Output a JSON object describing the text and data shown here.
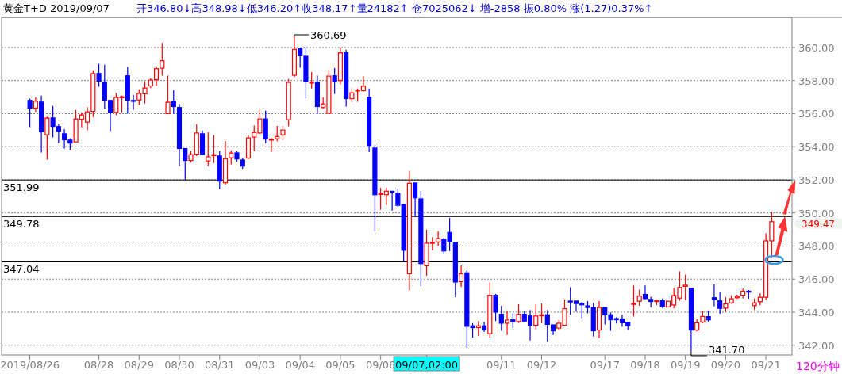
{
  "chart_data": {
    "type": "candlestick",
    "title": "黄金T+D 2019/09/07",
    "subtitle": "开346.80↓高348.98↓低346.20↑收348.17↑量24182↑ 仓7025062↓ 增-2858 振0.80% 涨(1.27)0.37%↑",
    "categories": [
      "2019/08/26",
      null,
      null,
      null,
      null,
      null,
      null,
      null,
      null,
      null,
      null,
      null,
      "08/28",
      null,
      null,
      null,
      null,
      null,
      null,
      "08/29",
      null,
      null,
      null,
      null,
      null,
      null,
      "08/30",
      null,
      null,
      null,
      null,
      null,
      null,
      "08/31",
      null,
      null,
      null,
      null,
      null,
      null,
      "09/03",
      null,
      null,
      null,
      null,
      null,
      null,
      "09/04",
      null,
      null,
      null,
      null,
      null,
      null,
      "09/05",
      null,
      null,
      null,
      null,
      null,
      null,
      "09/06",
      null,
      null,
      null,
      null,
      null,
      null,
      null,
      "09/07,02:00",
      null,
      null,
      null,
      null,
      null,
      null,
      null,
      null,
      null,
      null,
      null,
      null,
      "09/11",
      null,
      null,
      null,
      null,
      null,
      null,
      "09/12",
      null,
      null,
      null,
      null,
      null,
      null,
      null,
      null,
      null,
      null,
      "09/17",
      null,
      null,
      null,
      null,
      null,
      null,
      "09/18",
      null,
      null,
      null,
      null,
      null,
      null,
      "09/19",
      null,
      null,
      null,
      null,
      null,
      null,
      "09/20",
      null,
      null,
      null,
      null,
      null,
      null,
      "09/21",
      null
    ],
    "ohlc": [
      [
        356.8,
        356.91,
        355.18,
        356.34
      ],
      [
        356.34,
        356.99,
        356.11,
        356.75
      ],
      [
        356.7,
        357.09,
        353.65,
        354.9
      ],
      [
        354.72,
        355.82,
        353.22,
        355.73
      ],
      [
        355.74,
        356.46,
        354.56,
        355.23
      ],
      [
        355.22,
        355.36,
        354.22,
        354.94
      ],
      [
        354.78,
        355.07,
        353.89,
        354.42
      ],
      [
        354.4,
        354.5,
        353.82,
        354.22
      ],
      [
        354.29,
        356.22,
        354.29,
        355.68
      ],
      [
        355.66,
        356.08,
        355.17,
        355.92
      ],
      [
        355.49,
        356.4,
        354.99,
        356.11
      ],
      [
        356.14,
        358.62,
        355.79,
        358.42
      ],
      [
        358.43,
        359.01,
        357.63,
        357.97
      ],
      [
        357.9,
        358.96,
        356.29,
        356.82
      ],
      [
        356.8,
        356.8,
        354.94,
        356.06
      ],
      [
        356.08,
        357.26,
        355.92,
        356.98
      ],
      [
        356.98,
        357.09,
        356.08,
        357.02
      ],
      [
        358.29,
        358.82,
        356.0,
        356.82
      ],
      [
        356.8,
        357.14,
        356.24,
        356.77
      ],
      [
        356.83,
        357.47,
        356.53,
        357.22
      ],
      [
        357.2,
        357.95,
        356.61,
        357.55
      ],
      [
        357.68,
        358.13,
        357.54,
        358.03
      ],
      [
        358.06,
        358.86,
        357.68,
        358.72
      ],
      [
        358.75,
        360.27,
        358.3,
        359.2
      ],
      [
        356.0,
        358.3,
        356.0,
        356.69
      ],
      [
        356.75,
        357.42,
        356.0,
        356.43
      ],
      [
        356.37,
        356.59,
        352.83,
        353.89
      ],
      [
        353.89,
        353.89,
        352.0,
        353.17
      ],
      [
        353.17,
        353.73,
        353.04,
        353.52
      ],
      [
        353.55,
        355.36,
        353.44,
        354.83
      ],
      [
        354.78,
        354.98,
        353.49,
        353.54
      ],
      [
        353.14,
        354.88,
        352.83,
        353.39
      ],
      [
        353.47,
        354.7,
        353.02,
        353.52
      ],
      [
        353.44,
        353.73,
        351.44,
        351.92
      ],
      [
        351.82,
        354.35,
        351.71,
        353.28
      ],
      [
        353.33,
        353.78,
        352.93,
        353.62
      ],
      [
        353.63,
        353.73,
        353.1,
        353.26
      ],
      [
        353.2,
        353.3,
        352.67,
        352.83
      ],
      [
        353.31,
        354.69,
        353.26,
        354.53
      ],
      [
        354.58,
        355.28,
        353.74,
        354.86
      ],
      [
        354.83,
        356.27,
        354.77,
        355.68
      ],
      [
        355.68,
        356.18,
        354.22,
        354.46
      ],
      [
        354.42,
        354.53,
        353.68,
        354.46
      ],
      [
        354.48,
        355.26,
        354.32,
        354.62
      ],
      [
        354.72,
        355.23,
        354.42,
        355.01
      ],
      [
        355.63,
        358.1,
        355.23,
        357.89
      ],
      [
        358.32,
        360.69,
        358.22,
        359.89
      ],
      [
        359.92,
        360.0,
        358.78,
        359.5
      ],
      [
        359.47,
        360.0,
        356.91,
        357.92
      ],
      [
        357.84,
        358.51,
        357.52,
        357.9
      ],
      [
        357.89,
        358.3,
        355.98,
        356.43
      ],
      [
        356.37,
        356.98,
        356.32,
        356.59
      ],
      [
        356.02,
        358.66,
        356.02,
        358.27
      ],
      [
        358.29,
        358.77,
        357.18,
        357.92
      ],
      [
        358.0,
        360.0,
        357.76,
        359.68
      ],
      [
        359.68,
        359.87,
        356.43,
        356.91
      ],
      [
        356.91,
        357.52,
        356.72,
        357.26
      ],
      [
        357.38,
        357.52,
        356.72,
        357.42
      ],
      [
        357.39,
        358.26,
        357.33,
        357.66
      ],
      [
        356.99,
        357.52,
        353.68,
        354.08
      ],
      [
        353.92,
        354.11,
        348.9,
        351.1
      ],
      [
        351.12,
        351.52,
        350.19,
        351.18
      ],
      [
        351.1,
        351.52,
        350.48,
        351.31
      ],
      [
        351.31,
        351.31,
        350.14,
        351.25
      ],
      [
        351.18,
        351.47,
        350.37,
        350.46
      ],
      [
        350.51,
        350.56,
        347.07,
        347.74
      ],
      [
        346.32,
        352.54,
        345.31,
        351.79
      ],
      [
        351.81,
        351.81,
        349.79,
        350.91
      ],
      [
        350.85,
        351.33,
        345.57,
        346.93
      ],
      [
        346.8,
        348.98,
        346.2,
        348.17
      ],
      [
        348.18,
        348.54,
        347.74,
        348.22
      ],
      [
        348.24,
        348.9,
        347.98,
        348.45
      ],
      [
        348.4,
        348.5,
        347.54,
        347.7
      ],
      [
        348.82,
        349.7,
        347.7,
        348.27
      ],
      [
        348.21,
        348.21,
        344.91,
        345.82
      ],
      [
        345.84,
        346.82,
        345.52,
        346.32
      ],
      [
        346.38,
        346.53,
        341.84,
        343.14
      ],
      [
        343.17,
        343.34,
        342.46,
        343.06
      ],
      [
        343.06,
        343.46,
        342.56,
        343.17
      ],
      [
        343.17,
        343.41,
        342.8,
        342.94
      ],
      [
        342.7,
        345.81,
        342.46,
        345.02
      ],
      [
        345.02,
        345.1,
        343.46,
        344.0
      ],
      [
        343.87,
        344.38,
        342.87,
        343.33
      ],
      [
        343.33,
        344.07,
        342.62,
        343.52
      ],
      [
        343.54,
        343.93,
        343.05,
        343.43
      ],
      [
        343.43,
        344.48,
        343.34,
        343.87
      ],
      [
        343.87,
        344.08,
        343.46,
        343.46
      ],
      [
        343.77,
        344.13,
        342.28,
        343.21
      ],
      [
        343.21,
        344.48,
        342.97,
        343.77
      ],
      [
        343.79,
        344.52,
        343.33,
        343.84
      ],
      [
        343.84,
        344.13,
        342.23,
        343.26
      ],
      [
        343.23,
        343.23,
        342.62,
        342.87
      ],
      [
        343.03,
        343.52,
        342.93,
        343.33
      ],
      [
        343.21,
        344.77,
        343.21,
        344.21
      ],
      [
        344.67,
        345.51,
        343.84,
        344.62
      ],
      [
        344.67,
        344.67,
        344.03,
        344.52
      ],
      [
        344.52,
        344.62,
        343.64,
        344.44
      ],
      [
        344.38,
        344.67,
        343.93,
        344.28
      ],
      [
        344.28,
        344.57,
        342.52,
        342.87
      ],
      [
        342.92,
        344.67,
        342.43,
        344.28
      ],
      [
        344.28,
        344.28,
        343.25,
        343.84
      ],
      [
        343.84,
        343.98,
        342.87,
        343.54
      ],
      [
        343.61,
        343.69,
        343.31,
        343.54
      ],
      [
        343.59,
        343.84,
        343.11,
        343.36
      ],
      [
        343.38,
        343.38,
        342.93,
        343.18
      ],
      [
        344.48,
        345.61,
        343.74,
        344.52
      ],
      [
        344.66,
        345.36,
        344.38,
        344.97
      ],
      [
        345.07,
        345.61,
        344.77,
        344.82
      ],
      [
        344.77,
        344.92,
        344.28,
        344.64
      ],
      [
        344.64,
        344.7,
        344.43,
        344.7
      ],
      [
        344.7,
        344.82,
        344.25,
        344.34
      ],
      [
        344.31,
        344.66,
        344.31,
        344.66
      ],
      [
        344.43,
        345.46,
        344.23,
        345.0
      ],
      [
        344.85,
        346.46,
        344.69,
        345.49
      ],
      [
        345.56,
        346.27,
        344.71,
        345.63
      ],
      [
        345.44,
        345.44,
        341.7,
        342.92
      ],
      [
        342.92,
        343.56,
        342.84,
        343.35
      ],
      [
        343.4,
        344.1,
        343.32,
        343.74
      ],
      [
        343.73,
        344.1,
        343.42,
        343.53
      ],
      [
        344.87,
        345.69,
        344.35,
        344.76
      ],
      [
        344.68,
        345.23,
        343.9,
        344.23
      ],
      [
        344.24,
        344.9,
        344.03,
        344.5
      ],
      [
        344.56,
        345.02,
        344.5,
        344.81
      ],
      [
        344.87,
        345.06,
        344.82,
        344.95
      ],
      [
        345.02,
        345.42,
        344.82,
        345.26
      ],
      [
        345.27,
        345.34,
        344.81,
        345.23
      ],
      [
        344.39,
        344.82,
        344.13,
        344.56
      ],
      [
        344.63,
        345.15,
        344.42,
        344.9
      ],
      [
        344.9,
        348.76,
        344.74,
        348.31
      ],
      [
        348.31,
        350.08,
        347.29,
        349.47
      ]
    ],
    "colors": [
      "#0000ff",
      "#ff0000",
      "#0000ff",
      "#ff0000",
      "#0000ff",
      "#0000ff",
      "#0000ff",
      "#0000ff",
      "#ff0000",
      "#ff0000",
      "#ff0000",
      "#ff0000",
      "#0000ff",
      "#0000ff",
      "#0000ff",
      "#ff0000",
      "#ff0000",
      "#0000ff",
      "#0000ff",
      "#ff0000",
      "#ff0000",
      "#ff0000",
      "#ff0000",
      "#ff0000",
      "#ff0000",
      "#0000ff",
      "#0000ff",
      "#0000ff",
      "#ff0000",
      "#ff0000",
      "#0000ff",
      "#ff0000",
      "#ff0000",
      "#0000ff",
      "#ff0000",
      "#ff0000",
      "#0000ff",
      "#0000ff",
      "#ff0000",
      "#ff0000",
      "#ff0000",
      "#0000ff",
      "#ff0000",
      "#ff0000",
      "#ff0000",
      "#ff0000",
      "#ff0000",
      "#0000ff",
      "#0000ff",
      "#ff0000",
      "#0000ff",
      "#ff0000",
      "#ff0000",
      "#0000ff",
      "#ff0000",
      "#0000ff",
      "#ff0000",
      "#ff0000",
      "#ff0000",
      "#0000ff",
      "#0000ff",
      "#ff0000",
      "#ff0000",
      "#0000ff",
      "#0000ff",
      "#0000ff",
      "#ff0000",
      "#0000ff",
      "#0000ff",
      "#ff0000",
      "#ff0000",
      "#ff0000",
      "#0000ff",
      "#0000ff",
      "#0000ff",
      "#ff0000",
      "#0000ff",
      "#0000ff",
      "#ff0000",
      "#0000ff",
      "#ff0000",
      "#0000ff",
      "#0000ff",
      "#ff0000",
      "#0000ff",
      "#ff0000",
      "#0000ff",
      "#0000ff",
      "#ff0000",
      "#ff0000",
      "#0000ff",
      "#0000ff",
      "#ff0000",
      "#ff0000",
      "#0000ff",
      "#0000ff",
      "#0000ff",
      "#0000ff",
      "#0000ff",
      "#ff0000",
      "#0000ff",
      "#0000ff",
      "#0000ff",
      "#0000ff",
      "#0000ff",
      "#ff0000",
      "#ff0000",
      "#0000ff",
      "#0000ff",
      "#ff0000",
      "#0000ff",
      "#ff0000",
      "#ff0000",
      "#ff0000",
      "#ff0000",
      "#0000ff",
      "#ff0000",
      "#ff0000",
      "#0000ff",
      "#0000ff",
      "#0000ff",
      "#ff0000",
      "#ff0000",
      "#ff0000",
      "#ff0000",
      "#0000ff",
      "#ff0000",
      "#ff0000",
      "#ff0000",
      "#ff0000"
    ],
    "ylim": [
      341.41,
      361.82
    ],
    "yticks": [
      {
        "value": 342,
        "label": "342.00"
      },
      {
        "value": 344,
        "label": "344.00"
      },
      {
        "value": 346,
        "label": "346.00"
      },
      {
        "value": 348,
        "label": "348.00"
      },
      {
        "value": 350,
        "label": "350.00"
      },
      {
        "value": 352,
        "label": "352.00"
      },
      {
        "value": 354,
        "label": "354.00"
      },
      {
        "value": 356,
        "label": "356.00"
      },
      {
        "value": 358,
        "label": "358.00"
      },
      {
        "value": 360,
        "label": "360.00"
      }
    ],
    "grid": "y",
    "ref_lines": [
      {
        "axis": "y",
        "value": 351.99,
        "label": "351.99",
        "color": "#000000"
      },
      {
        "axis": "y",
        "value": 349.78,
        "label": "349.78",
        "color": "#000000"
      },
      {
        "axis": "y",
        "value": 347.04,
        "label": "347.04",
        "color": "#000000"
      }
    ],
    "annotations": [
      "360.69",
      "341.70",
      "349.47",
      "120分钟"
    ]
  }
}
